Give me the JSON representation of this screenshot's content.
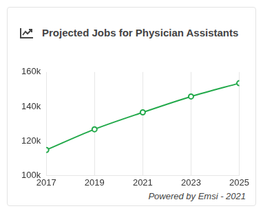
{
  "chart_data": {
    "type": "line",
    "title": "Projected Jobs for Physician Assistants",
    "footer": "Powered by Emsi - 2021",
    "x": [
      2017,
      2019,
      2021,
      2023,
      2025
    ],
    "values": [
      114800,
      126800,
      136600,
      145800,
      153500
    ],
    "color": "#22a94a",
    "marker": "circle",
    "xlim": [
      2017,
      2025
    ],
    "xticks": [
      2017,
      2019,
      2021,
      2023,
      2025
    ],
    "ylim": [
      100000,
      160000
    ],
    "yticks": [
      {
        "value": 100000,
        "label": "100k"
      },
      {
        "value": 120000,
        "label": "120k"
      },
      {
        "value": 140000,
        "label": "140k"
      },
      {
        "value": 160000,
        "label": "160k"
      }
    ],
    "grid": "x"
  }
}
